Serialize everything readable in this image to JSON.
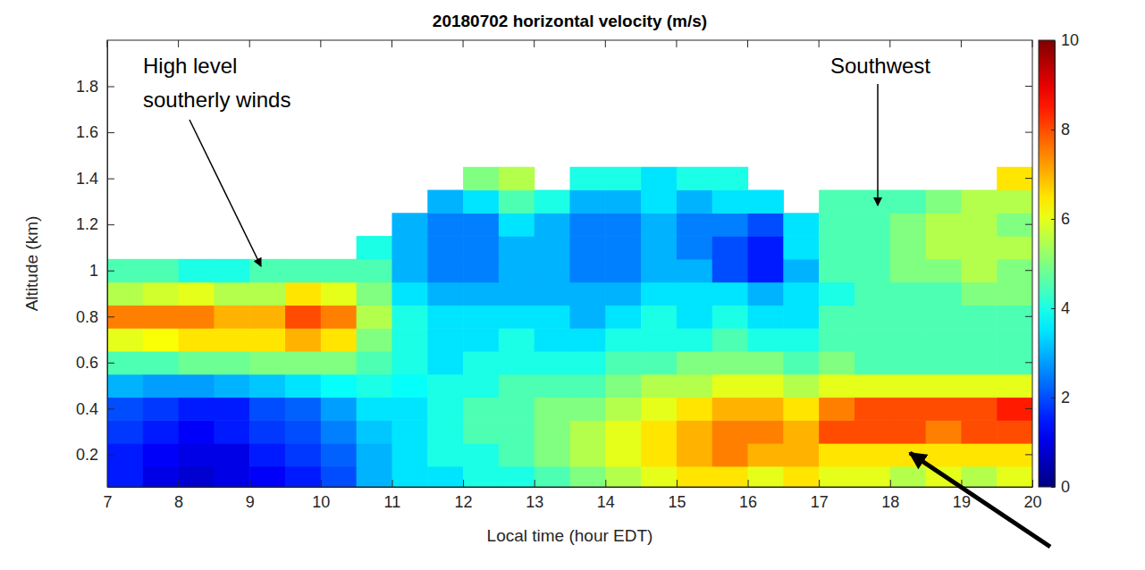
{
  "chart_data": {
    "type": "heatmap",
    "title": "20180702 horizontal velocity (m/s)",
    "x_label": "Local time (hour EDT)",
    "y_label": "Altitude (km)",
    "xlim": [
      7,
      20
    ],
    "xticks": [
      7,
      8,
      9,
      10,
      11,
      12,
      13,
      14,
      15,
      16,
      17,
      18,
      19,
      20
    ],
    "ylim": [
      0.06,
      2.0
    ],
    "yticks": [
      0.2,
      0.4,
      0.6,
      0.8,
      1,
      1.2,
      1.4,
      1.6,
      1.8
    ],
    "x_bins": [
      7,
      7.5,
      8,
      8.5,
      9,
      9.5,
      10,
      10.5,
      11,
      11.5,
      12,
      12.5,
      13,
      13.5,
      14,
      14.5,
      15,
      15.5,
      16,
      16.5,
      17,
      17.5,
      18,
      18.5,
      19,
      19.5,
      20
    ],
    "y_bins": [
      0.05,
      0.15,
      0.25,
      0.35,
      0.45,
      0.55,
      0.65,
      0.75,
      0.85,
      0.95,
      1.05,
      1.15,
      1.25,
      1.35,
      1.45
    ],
    "values": [
      [
        1.5,
        1.0,
        0.8,
        1.0,
        1.2,
        1.5,
        2.0,
        3.0,
        3.5,
        3.5,
        4.0,
        4.0,
        4.5,
        5.0,
        5.5,
        6.0,
        6.5,
        6.5,
        6.0,
        6.5,
        6.0,
        6.0,
        5.5,
        6.0,
        5.5,
        6.0
      ],
      [
        1.5,
        1.2,
        1.0,
        1.0,
        1.5,
        1.8,
        2.2,
        3.0,
        3.5,
        4.0,
        4.0,
        4.5,
        5.0,
        5.5,
        6.0,
        6.5,
        7.0,
        7.5,
        7.0,
        7.0,
        6.5,
        6.5,
        6.5,
        6.5,
        6.5,
        6.5
      ],
      [
        1.8,
        1.5,
        1.2,
        1.5,
        1.8,
        2.0,
        2.5,
        3.2,
        3.5,
        4.0,
        4.5,
        4.5,
        5.0,
        5.5,
        6.0,
        6.5,
        7.0,
        7.5,
        7.5,
        7.0,
        8.0,
        8.0,
        8.0,
        7.5,
        8.0,
        8.0
      ],
      [
        2.0,
        1.8,
        1.5,
        1.5,
        2.0,
        2.2,
        2.8,
        3.5,
        3.5,
        4.0,
        4.5,
        4.5,
        5.0,
        5.0,
        5.5,
        6.0,
        6.5,
        7.0,
        7.0,
        6.5,
        7.5,
        8.0,
        8.0,
        8.0,
        8.0,
        8.5
      ],
      [
        3.0,
        2.8,
        2.8,
        3.0,
        3.2,
        3.5,
        3.8,
        4.0,
        3.8,
        4.0,
        4.0,
        4.5,
        4.5,
        4.5,
        5.0,
        5.5,
        5.5,
        6.0,
        6.0,
        5.5,
        6.0,
        6.0,
        6.0,
        6.0,
        6.0,
        6.0
      ],
      [
        4.5,
        4.5,
        4.8,
        4.8,
        5.0,
        5.0,
        5.0,
        4.5,
        4.0,
        3.5,
        4.0,
        4.0,
        4.0,
        4.0,
        4.5,
        4.5,
        5.0,
        5.0,
        5.0,
        4.5,
        5.0,
        4.5,
        4.5,
        4.5,
        4.5,
        4.5
      ],
      [
        6.0,
        6.2,
        6.5,
        6.5,
        6.5,
        7.0,
        6.5,
        5.0,
        4.0,
        3.5,
        3.5,
        4.0,
        3.5,
        3.5,
        4.0,
        4.0,
        4.0,
        4.5,
        4.0,
        4.0,
        4.5,
        4.5,
        4.5,
        4.5,
        4.5,
        4.5
      ],
      [
        7.5,
        7.5,
        7.5,
        7.0,
        7.0,
        8.0,
        7.5,
        5.5,
        4.0,
        3.5,
        3.5,
        3.5,
        3.5,
        3.0,
        3.5,
        4.0,
        3.5,
        4.0,
        3.5,
        3.5,
        4.5,
        4.5,
        4.5,
        4.5,
        4.5,
        4.5
      ],
      [
        5.5,
        5.8,
        6.0,
        5.5,
        5.5,
        6.5,
        6.0,
        5.0,
        3.5,
        3.0,
        3.0,
        3.0,
        3.0,
        3.0,
        3.0,
        3.5,
        3.5,
        3.5,
        3.0,
        3.5,
        4.0,
        4.5,
        4.5,
        4.5,
        5.0,
        5.0
      ],
      [
        4.5,
        4.5,
        4.0,
        4.0,
        4.5,
        4.5,
        4.5,
        4.5,
        3.0,
        2.5,
        2.5,
        3.0,
        3.0,
        2.5,
        2.5,
        3.0,
        3.0,
        2.0,
        1.5,
        3.0,
        4.5,
        4.5,
        5.0,
        5.0,
        5.5,
        5.0
      ],
      [
        null,
        null,
        null,
        null,
        null,
        null,
        null,
        4.0,
        3.0,
        2.5,
        2.5,
        3.0,
        3.0,
        2.5,
        2.5,
        3.0,
        2.5,
        2.0,
        1.5,
        3.5,
        4.5,
        4.5,
        5.0,
        5.5,
        5.5,
        5.5
      ],
      [
        null,
        null,
        null,
        null,
        null,
        null,
        null,
        null,
        3.0,
        2.5,
        2.5,
        3.5,
        3.0,
        2.5,
        2.5,
        3.0,
        2.5,
        2.5,
        2.0,
        3.5,
        4.5,
        4.5,
        5.0,
        5.5,
        5.5,
        5.0
      ],
      [
        null,
        null,
        null,
        null,
        null,
        null,
        null,
        null,
        null,
        3.0,
        3.5,
        4.5,
        4.0,
        3.0,
        3.0,
        3.5,
        3.0,
        3.5,
        3.5,
        null,
        4.5,
        4.5,
        4.5,
        5.0,
        5.5,
        5.5
      ],
      [
        null,
        null,
        null,
        null,
        null,
        null,
        null,
        null,
        null,
        null,
        5.0,
        5.5,
        null,
        4.0,
        4.0,
        3.5,
        4.0,
        4.0,
        null,
        null,
        null,
        null,
        null,
        null,
        null,
        6.5
      ]
    ],
    "colorbar": {
      "range": [
        0,
        10
      ],
      "ticks": [
        0,
        2,
        4,
        6,
        8,
        10
      ]
    },
    "annotations": [
      {
        "text": [
          "High level",
          "southerly winds"
        ]
      },
      {
        "text": [
          "Southwest"
        ]
      }
    ]
  }
}
